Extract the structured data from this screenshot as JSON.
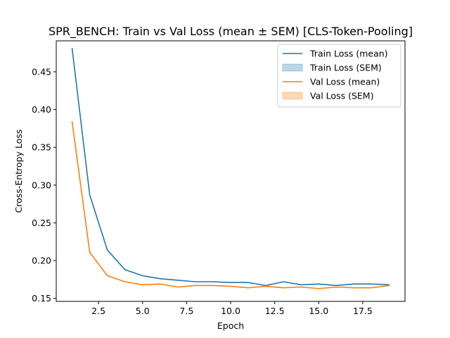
{
  "chart_data": {
    "type": "line",
    "title": "SPR_BENCH: Train vs Val Loss (mean ± SEM) [CLS-Token-Pooling]",
    "xlabel": "Epoch",
    "ylabel": "Cross-Entropy Loss",
    "xlim": [
      0.1,
      19.9
    ],
    "ylim": [
      0.146,
      0.491
    ],
    "xticks": [
      2.5,
      5.0,
      7.5,
      10.0,
      12.5,
      15.0,
      17.5
    ],
    "xtick_labels": [
      "2.5",
      "5.0",
      "7.5",
      "10.0",
      "12.5",
      "15.0",
      "17.5"
    ],
    "yticks": [
      0.15,
      0.2,
      0.25,
      0.3,
      0.35,
      0.4,
      0.45
    ],
    "ytick_labels": [
      "0.15",
      "0.20",
      "0.25",
      "0.30",
      "0.35",
      "0.40",
      "0.45"
    ],
    "grid": false,
    "legend_position": "top-right",
    "x": [
      1,
      2,
      3,
      4,
      5,
      6,
      7,
      8,
      9,
      10,
      11,
      12,
      13,
      14,
      15,
      16,
      17,
      18,
      19
    ],
    "series": [
      {
        "name": "Train Loss (mean)",
        "color": "#1f77b4",
        "values": [
          0.481,
          0.287,
          0.214,
          0.188,
          0.18,
          0.176,
          0.174,
          0.172,
          0.172,
          0.171,
          0.171,
          0.167,
          0.172,
          0.168,
          0.169,
          0.167,
          0.169,
          0.169,
          0.168
        ]
      },
      {
        "name": "Val Loss (mean)",
        "color": "#ff7f0e",
        "values": [
          0.384,
          0.211,
          0.18,
          0.172,
          0.168,
          0.169,
          0.165,
          0.167,
          0.167,
          0.166,
          0.164,
          0.166,
          0.164,
          0.165,
          0.163,
          0.165,
          0.164,
          0.164,
          0.167
        ]
      }
    ],
    "legend": [
      {
        "label": "Train Loss (mean)",
        "kind": "line",
        "color": "#1f77b4"
      },
      {
        "label": "Train Loss (SEM)",
        "kind": "patch",
        "color": "#1f77b4"
      },
      {
        "label": "Val Loss (mean)",
        "kind": "line",
        "color": "#ff7f0e"
      },
      {
        "label": "Val Loss (SEM)",
        "kind": "patch",
        "color": "#ff7f0e"
      }
    ]
  }
}
